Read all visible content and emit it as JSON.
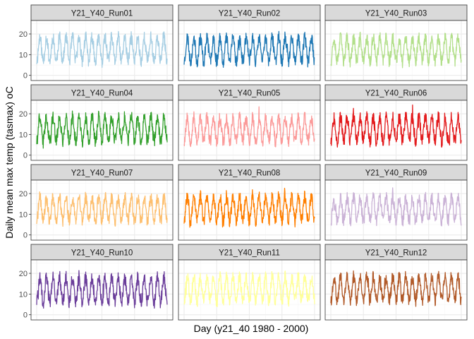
{
  "chart_data": {
    "type": "line",
    "layout": "facet_wrap",
    "ncol": 3,
    "xlabel": "Day (y21_40 1980 - 2000)",
    "ylabel": "Daily mean max temp (tasmax) oC",
    "ylim": [
      -2.5,
      26.5
    ],
    "yticks": [
      0,
      10,
      20
    ],
    "xlim": [
      1980,
      2000
    ],
    "x_ticks_shown": false,
    "grid": true,
    "n_years": 20,
    "panels": [
      {
        "name": "Y21_Y40_Run01",
        "color": "#a6cee3",
        "seasonal_mean": 12.6,
        "seasonal_amp": 5.6,
        "noise": 2.2,
        "seed": 11
      },
      {
        "name": "Y21_Y40_Run02",
        "color": "#1f78b4",
        "seasonal_mean": 12.5,
        "seasonal_amp": 5.8,
        "noise": 2.2,
        "seed": 23
      },
      {
        "name": "Y21_Y40_Run03",
        "color": "#b2df8a",
        "seasonal_mean": 12.4,
        "seasonal_amp": 5.6,
        "noise": 2.2,
        "seed": 37
      },
      {
        "name": "Y21_Y40_Run04",
        "color": "#33a02c",
        "seasonal_mean": 12.6,
        "seasonal_amp": 5.8,
        "noise": 2.2,
        "seed": 41
      },
      {
        "name": "Y21_Y40_Run05",
        "color": "#fb9a99",
        "seasonal_mean": 12.3,
        "seasonal_amp": 5.6,
        "noise": 2.2,
        "seed": 53
      },
      {
        "name": "Y21_Y40_Run06",
        "color": "#e31a1c",
        "seasonal_mean": 12.5,
        "seasonal_amp": 5.7,
        "noise": 2.2,
        "seed": 67
      },
      {
        "name": "Y21_Y40_Run07",
        "color": "#fdbf6f",
        "seasonal_mean": 12.4,
        "seasonal_amp": 5.6,
        "noise": 2.2,
        "seed": 71
      },
      {
        "name": "Y21_Y40_Run08",
        "color": "#ff7f00",
        "seasonal_mean": 12.7,
        "seasonal_amp": 5.8,
        "noise": 2.2,
        "seed": 83
      },
      {
        "name": "Y21_Y40_Run09",
        "color": "#cab2d6",
        "seasonal_mean": 12.4,
        "seasonal_amp": 5.6,
        "noise": 2.2,
        "seed": 97
      },
      {
        "name": "Y21_Y40_Run10",
        "color": "#6a3d9a",
        "seasonal_mean": 12.0,
        "seasonal_amp": 5.8,
        "noise": 2.3,
        "seed": 101
      },
      {
        "name": "Y21_Y40_Run11",
        "color": "#ffff99",
        "seasonal_mean": 12.5,
        "seasonal_amp": 5.7,
        "noise": 2.2,
        "seed": 113
      },
      {
        "name": "Y21_Y40_Run12",
        "color": "#b15928",
        "seasonal_mean": 12.6,
        "seasonal_amp": 5.7,
        "noise": 2.2,
        "seed": 127
      }
    ]
  },
  "style": {
    "strip_fill": "#d9d9d9",
    "panel_border": "#333333",
    "grid_major": "#ebebeb",
    "grid_minor": "#f5f5f5"
  }
}
